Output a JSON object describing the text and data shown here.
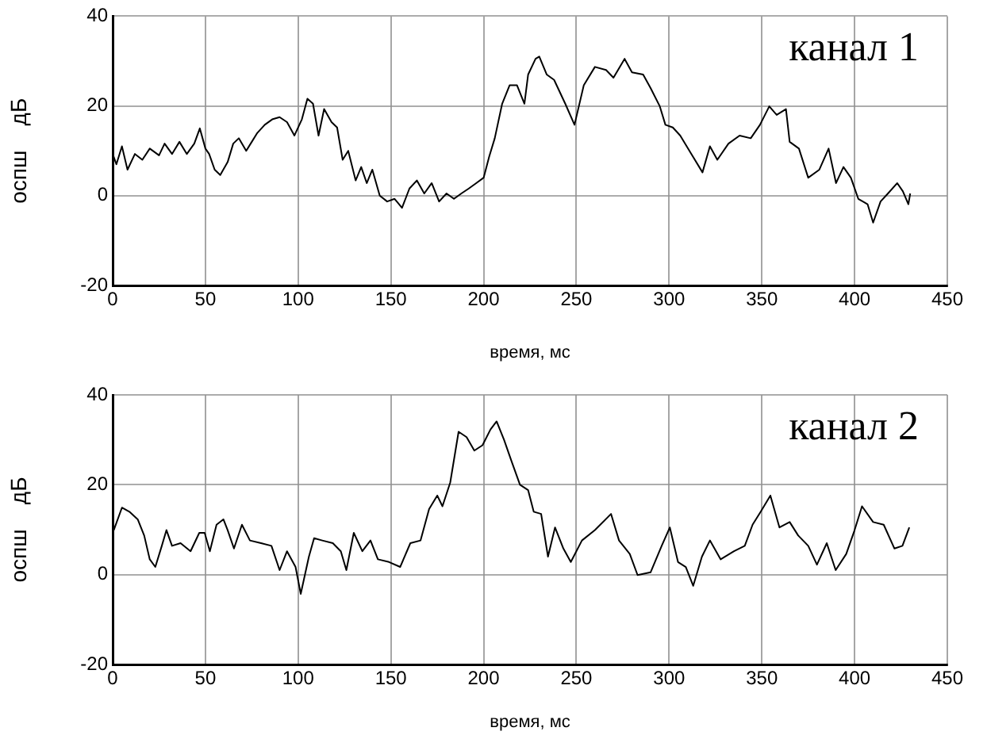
{
  "chart_data": [
    {
      "type": "line",
      "xlabel": "время, мс",
      "ylabel": "оспш    дБ",
      "annotations": [
        "канал 1"
      ],
      "xlim": [
        0,
        450
      ],
      "xticks": [
        0,
        50,
        100,
        150,
        200,
        250,
        300,
        350,
        400,
        450
      ],
      "ylim": [
        -20,
        40
      ],
      "yticks": [
        -20,
        0,
        20,
        40
      ],
      "grid": true,
      "legend": false,
      "marker": "none",
      "line_style": "solid",
      "series": [
        {
          "color": "#000000",
          "x": [
            0,
            2,
            5,
            8,
            12,
            16,
            20,
            25,
            28,
            32,
            36,
            40,
            44,
            47,
            50,
            52,
            55,
            58,
            62,
            65,
            68,
            72,
            75,
            78,
            82,
            86,
            90,
            94,
            98,
            102,
            105,
            108,
            111,
            114,
            118,
            121,
            124,
            127,
            131,
            134,
            137,
            140,
            144,
            148,
            152,
            156,
            160,
            164,
            168,
            172,
            176,
            180,
            184,
            188,
            192,
            196,
            200,
            203,
            206,
            210,
            214,
            218,
            222,
            224,
            228,
            230,
            234,
            238,
            244,
            249,
            254,
            260,
            266,
            270,
            276,
            280,
            286,
            290,
            295,
            298,
            302,
            306,
            312,
            318,
            322,
            326,
            332,
            338,
            344,
            349,
            354,
            358,
            363,
            365,
            370,
            375,
            381,
            386,
            390,
            394,
            398,
            402,
            407,
            410,
            414,
            418,
            423,
            426,
            429,
            430
          ],
          "values": [
            9.3,
            7,
            11,
            5.8,
            9.3,
            8,
            10.5,
            9,
            11.6,
            9.3,
            12,
            9.3,
            11.6,
            15,
            10.5,
            9.3,
            5.8,
            4.6,
            7.5,
            11.6,
            12.8,
            10,
            12,
            14,
            15.8,
            17,
            17.5,
            16.4,
            13.4,
            17,
            21.6,
            20.5,
            13.4,
            19.3,
            16.4,
            15.2,
            8,
            10,
            3.4,
            6.4,
            2.8,
            5.8,
            0,
            -1.3,
            -0.7,
            -2.7,
            1.6,
            3.4,
            0.5,
            2.8,
            -1.3,
            0.5,
            -0.7,
            0.5,
            1.6,
            2.8,
            4,
            8.7,
            12.8,
            20.5,
            24.6,
            24.6,
            20.5,
            27,
            30.5,
            31,
            27,
            25.8,
            20.5,
            15.8,
            24.6,
            28.7,
            28,
            26.3,
            30.5,
            27.5,
            27,
            24,
            19.9,
            15.8,
            15.2,
            13.4,
            9.3,
            5.2,
            11,
            8,
            11.6,
            13.4,
            12.8,
            15.8,
            19.9,
            18,
            19.3,
            12,
            10.5,
            4,
            5.8,
            10.5,
            2.8,
            6.4,
            4,
            -0.7,
            -1.9,
            -6,
            -1.3,
            0.5,
            2.8,
            1,
            -1.9,
            0.5
          ]
        }
      ]
    },
    {
      "type": "line",
      "xlabel": "время, мс",
      "ylabel": "оспш    дБ",
      "annotations": [
        "канал 2"
      ],
      "xlim": [
        0,
        450
      ],
      "xticks": [
        0,
        50,
        100,
        150,
        200,
        250,
        300,
        350,
        400,
        450
      ],
      "ylim": [
        -20,
        40
      ],
      "yticks": [
        -20,
        0,
        20,
        40
      ],
      "grid": true,
      "legend": false,
      "marker": "none",
      "line_style": "solid",
      "series": [
        {
          "color": "#000000",
          "x": [
            0.6,
            5,
            9,
            13.5,
            17,
            20,
            23,
            26.5,
            29,
            32,
            36.6,
            42,
            46.7,
            49.6,
            52.4,
            56,
            59.7,
            62,
            65.4,
            69.7,
            74,
            80,
            85.6,
            90,
            94,
            98.6,
            101.4,
            105.8,
            108.6,
            113,
            118.7,
            123,
            126,
            130,
            134.6,
            139,
            143,
            149,
            155,
            160.5,
            166,
            170.6,
            175,
            177.8,
            182,
            186.5,
            190.8,
            195,
            199.4,
            203.7,
            207,
            211,
            215,
            219.6,
            224,
            227,
            231,
            234.7,
            238.5,
            243,
            247,
            253,
            260,
            268.7,
            273,
            278.8,
            283,
            290,
            296,
            300.4,
            304.8,
            309,
            313,
            317.7,
            322,
            327.8,
            335,
            340.8,
            345,
            349.4,
            354.6,
            359.5,
            365,
            369.6,
            375,
            379.7,
            385,
            389.8,
            395.5,
            400,
            404,
            410,
            415.7,
            421.5,
            425.8,
            429.5
          ],
          "values": [
            9.9,
            14.9,
            14,
            12.3,
            8.7,
            3.4,
            1.7,
            6.4,
            9.9,
            6.4,
            7,
            5.2,
            9.3,
            9.3,
            5.2,
            11.1,
            12.3,
            9.9,
            5.8,
            11.1,
            7.6,
            7,
            6.4,
            1,
            5.2,
            1.7,
            -4.3,
            4,
            8.1,
            7.6,
            7,
            5.2,
            1,
            9.3,
            5.2,
            7.6,
            3.4,
            2.8,
            1.7,
            7,
            7.6,
            14.6,
            17.6,
            15.2,
            20.5,
            31.8,
            30.6,
            27.6,
            28.8,
            32.3,
            34.1,
            30,
            25.3,
            20,
            18.8,
            14,
            13.5,
            4,
            10.5,
            5.8,
            2.8,
            7.6,
            9.9,
            13.5,
            7.6,
            4.6,
            -0.1,
            0.5,
            6.4,
            10.5,
            2.8,
            1.7,
            -2.5,
            4,
            7.6,
            3.4,
            5.2,
            6.4,
            11.1,
            14,
            17.6,
            10.5,
            11.7,
            8.7,
            6.4,
            2.2,
            7,
            1,
            4.6,
            9.9,
            15.2,
            11.7,
            11.1,
            5.8,
            6.4,
            10.5
          ]
        }
      ]
    }
  ]
}
